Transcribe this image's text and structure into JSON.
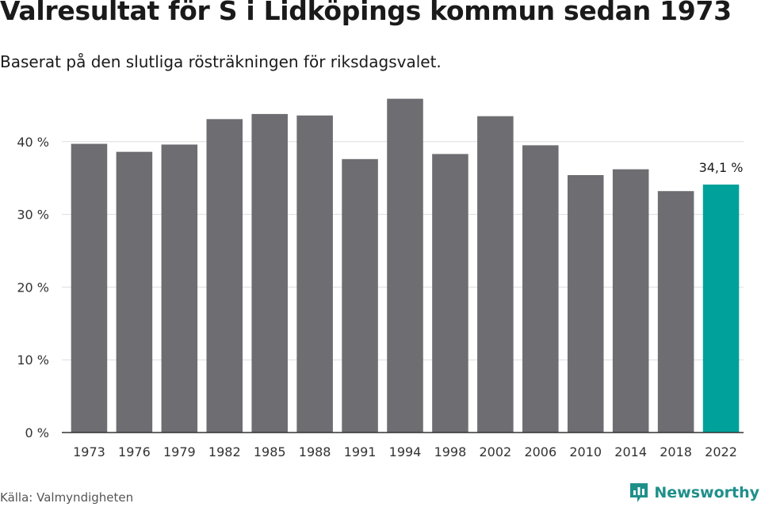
{
  "title": "Valresultat för S i Lidköpings kommun sedan 1973",
  "subtitle": "Baserat på den slutliga rösträkningen för riksdagsvalet.",
  "source": "Källa: Valmyndigheten",
  "brand": {
    "name": "Newsworthy",
    "icon": "newsworthy-logo-icon"
  },
  "colors": {
    "bar": "#6e6d72",
    "highlight": "#00a19a",
    "grid": "#dddddd",
    "axis": "#333333"
  },
  "chart_data": {
    "type": "bar",
    "title": "Valresultat för S i Lidköpings kommun sedan 1973",
    "subtitle": "Baserat på den slutliga rösträkningen för riksdagsvalet.",
    "categories": [
      "1973",
      "1976",
      "1979",
      "1982",
      "1985",
      "1988",
      "1991",
      "1994",
      "1998",
      "2002",
      "2006",
      "2010",
      "2014",
      "2018",
      "2022"
    ],
    "values": [
      39.7,
      38.6,
      39.6,
      43.1,
      43.8,
      43.6,
      37.6,
      45.9,
      38.3,
      43.5,
      39.5,
      35.4,
      36.2,
      33.2,
      34.1
    ],
    "highlight_index": 14,
    "data_labels": [
      {
        "index": 14,
        "text": "34,1 %"
      }
    ],
    "yticks": [
      "0 %",
      "10 %",
      "20 %",
      "30 %",
      "40 %"
    ],
    "ytick_values": [
      0,
      10,
      20,
      30,
      40
    ],
    "ylim": [
      0,
      50
    ],
    "grid": true,
    "xlabel": "",
    "ylabel": ""
  }
}
